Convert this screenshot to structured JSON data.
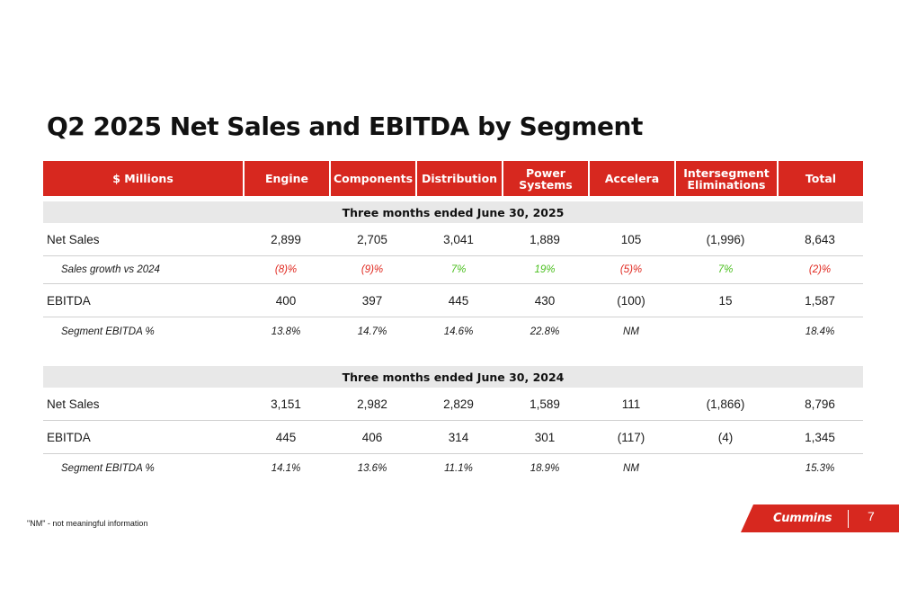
{
  "title": "Q2 2025 Net Sales and EBITDA by Segment",
  "headers": [
    "$ Millions",
    "Engine",
    "Components",
    "Distribution",
    "Power\nSystems",
    "Accelera",
    "Intersegment\nEliminations",
    "Total"
  ],
  "sections": [
    {
      "heading": "Three months ended June 30, 2025",
      "rows": [
        {
          "label": "Net Sales",
          "values": [
            "2,899",
            "2,705",
            "3,041",
            "1,889",
            "105",
            "(1,996)",
            "8,643"
          ]
        },
        {
          "label": "Sales growth vs 2024",
          "values": [
            "(8)%",
            "(9)%",
            "7%",
            "19%",
            "(5)%",
            "7%",
            "(2)%"
          ]
        },
        {
          "label": "EBITDA",
          "values": [
            "400",
            "397",
            "445",
            "430",
            "(100)",
            "15",
            "1,587"
          ]
        },
        {
          "label": "Segment EBITDA %",
          "values": [
            "13.8%",
            "14.7%",
            "14.6%",
            "22.8%",
            "NM",
            "",
            "18.4%"
          ]
        }
      ]
    },
    {
      "heading": "Three months ended June 30, 2024",
      "rows": [
        {
          "label": "Net Sales",
          "values": [
            "3,151",
            "2,982",
            "2,829",
            "1,589",
            "111",
            "(1,866)",
            "8,796"
          ]
        },
        {
          "label": "EBITDA",
          "values": [
            "445",
            "406",
            "314",
            "301",
            "(117)",
            "(4)",
            "1,345"
          ]
        },
        {
          "label": "Segment EBITDA %",
          "values": [
            "14.1%",
            "13.6%",
            "11.1%",
            "18.9%",
            "NM",
            "",
            "15.3%"
          ]
        }
      ]
    }
  ],
  "colors": {
    "header_bg": "#d7281f",
    "negative": "#e0281f",
    "positive": "#4bbf1f",
    "section_bg": "#e8e8e8"
  },
  "footnote": "\"NM\" - not meaningful information",
  "brand": {
    "name": "Cummins",
    "page_number": "7"
  }
}
